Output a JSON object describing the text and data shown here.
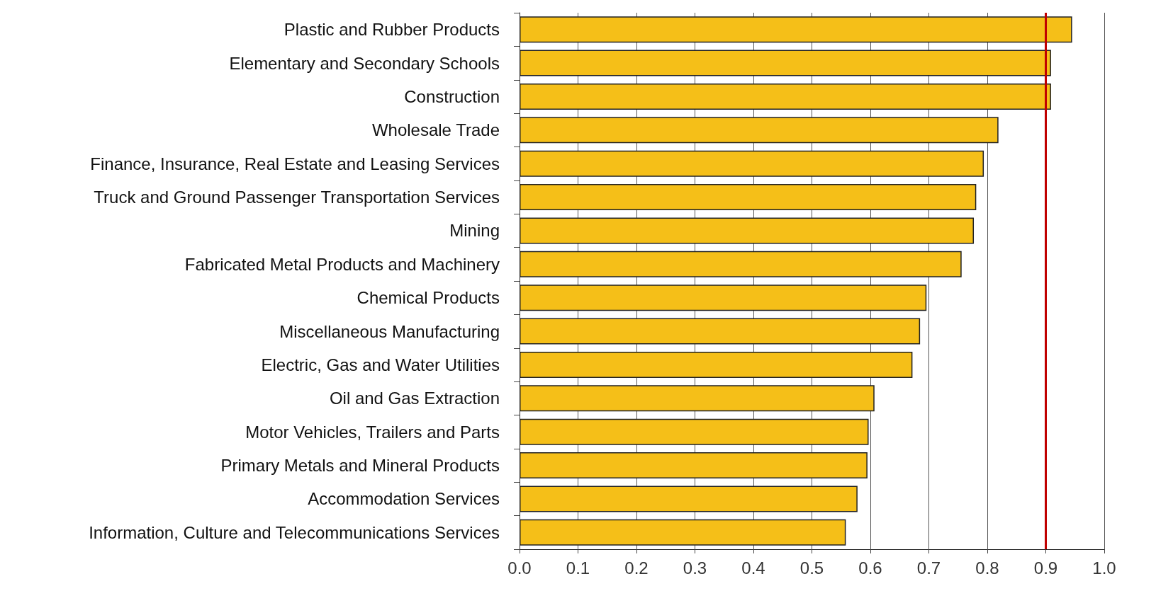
{
  "chart_data": {
    "type": "bar",
    "orientation": "horizontal",
    "categories": [
      "Plastic and Rubber Products",
      "Elementary and Secondary Schools",
      "Construction",
      "Wholesale Trade",
      "Finance, Insurance, Real Estate and Leasing Services",
      "Truck and Ground Passenger Transportation Services",
      "Mining",
      "Fabricated Metal Products and Machinery",
      "Chemical Products",
      "Miscellaneous Manufacturing",
      "Electric, Gas and Water Utilities",
      "Oil and Gas Extraction",
      "Motor Vehicles, Trailers and Parts",
      "Primary Metals and Mineral Products",
      "Accommodation Services",
      "Information, Culture and Telecommunications Services"
    ],
    "values": [
      0.945,
      0.909,
      0.909,
      0.819,
      0.794,
      0.781,
      0.777,
      0.756,
      0.696,
      0.685,
      0.672,
      0.607,
      0.597,
      0.595,
      0.578,
      0.558
    ],
    "color": "#f5bf18",
    "xlim": [
      0,
      1
    ],
    "xticks": [
      {
        "value": 0,
        "label": "0.0"
      },
      0.1,
      0.2,
      0.3,
      0.4,
      0.5,
      0.6,
      0.7,
      0.8,
      0.9,
      {
        "value": 1,
        "label": "1.0"
      }
    ],
    "grid": "x",
    "ref_lines": [
      {
        "axis": "x",
        "value": 0.9,
        "color": "#c00000"
      }
    ]
  }
}
